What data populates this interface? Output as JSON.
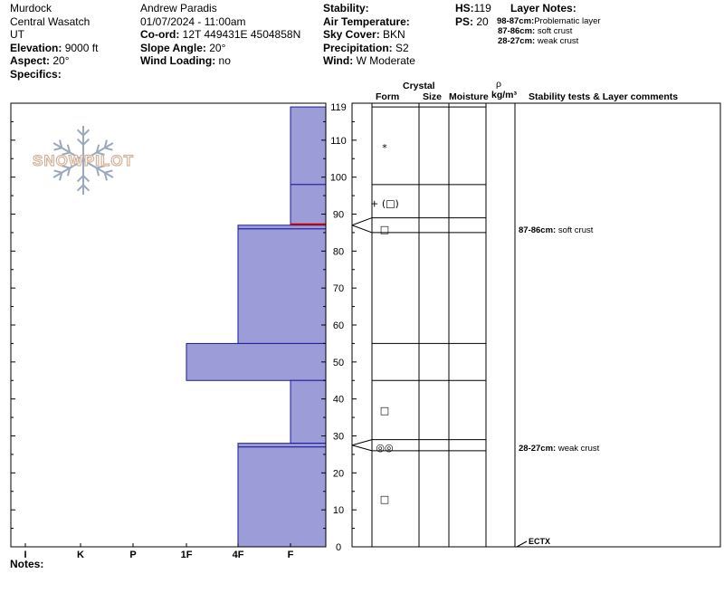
{
  "header": {
    "location": "Murdock",
    "range": "Central Wasatch",
    "state": "UT",
    "elevation_label": "Elevation:",
    "elevation": "9000 ft",
    "aspect_label": "Aspect:",
    "aspect": "20°",
    "specifics_label": "Specifics:",
    "observer": "Andrew Paradis",
    "datetime": "01/07/2024 - 11:00am",
    "coord_label": "Co-ord:",
    "coord": "12T 449431E 4504858N",
    "slope_label": "Slope Angle:",
    "slope": "20°",
    "wind_loading_label": "Wind Loading:",
    "wind_loading": "no",
    "stability_label": "Stability:",
    "stability": "",
    "air_temp_label": "Air Temperature:",
    "air_temp": "",
    "sky_label": "Sky Cover:",
    "sky": "BKN",
    "precip_label": "Precipitation:",
    "precip": "S2",
    "wind_label": "Wind:",
    "wind": "W Moderate",
    "hs_label": "HS:",
    "hs": "119",
    "ps_label": "PS:",
    "ps": "20",
    "layer_notes_label": "Layer Notes:",
    "layer_notes": [
      {
        "range": "98-87cm:",
        "text": "Problematic layer"
      },
      {
        "range": "87-86cm:",
        "text": "soft crust"
      },
      {
        "range": "28-27cm:",
        "text": "weak crust"
      }
    ]
  },
  "logo_text": "SNOWPILOT",
  "columns": {
    "crystal": "Crystal",
    "form": "Form",
    "size": "Size",
    "moisture": "Moisture",
    "rho": "ρ",
    "density_unit": "kg/m³",
    "comments": "Stability tests & Layer comments"
  },
  "notes_label": "Notes:",
  "colors": {
    "fill": "#9c9cd9",
    "edge": "#1a1a99",
    "problem_line": "#cc0000"
  },
  "chart_data": {
    "type": "bar",
    "orientation": "horizontal",
    "y_axis": {
      "label": "",
      "range": [
        0,
        120
      ],
      "ticks": [
        0,
        10,
        20,
        30,
        40,
        50,
        60,
        70,
        80,
        90,
        100,
        110,
        119
      ]
    },
    "x_axis": {
      "categories": [
        "I",
        "K",
        "P",
        "1F",
        "4F",
        "F"
      ]
    },
    "hardness_profile": [
      {
        "top": 119,
        "bottom": 98,
        "hardness": "F"
      },
      {
        "top": 98,
        "bottom": 87,
        "hardness": "F"
      },
      {
        "top": 87,
        "bottom": 86,
        "hardness": "4F"
      },
      {
        "top": 86,
        "bottom": 55,
        "hardness": "4F"
      },
      {
        "top": 55,
        "bottom": 45,
        "hardness": "1F"
      },
      {
        "top": 45,
        "bottom": 28,
        "hardness": "F"
      },
      {
        "top": 28,
        "bottom": 27,
        "hardness": "4F"
      },
      {
        "top": 27,
        "bottom": 0,
        "hardness": "4F"
      }
    ],
    "problem_layer_line": 87,
    "grain_boundaries": [
      119,
      98,
      89,
      85,
      55,
      45,
      29,
      26
    ],
    "grain_symbols": [
      {
        "depth": 108,
        "symbol": "*"
      },
      {
        "depth": 93,
        "symbol": "+ (□)"
      },
      {
        "depth": 86,
        "symbol": "□"
      },
      {
        "depth": 37,
        "symbol": "□"
      },
      {
        "depth": 27,
        "symbol": "◎◎"
      },
      {
        "depth": 13,
        "symbol": "□"
      }
    ],
    "layer_comments": [
      {
        "depth": 86,
        "range": "87-86cm:",
        "text": "soft crust"
      },
      {
        "depth": 27,
        "range": "28-27cm:",
        "text": "weak crust"
      }
    ],
    "tests": [
      {
        "depth": 0,
        "label": "ECTX"
      }
    ]
  }
}
